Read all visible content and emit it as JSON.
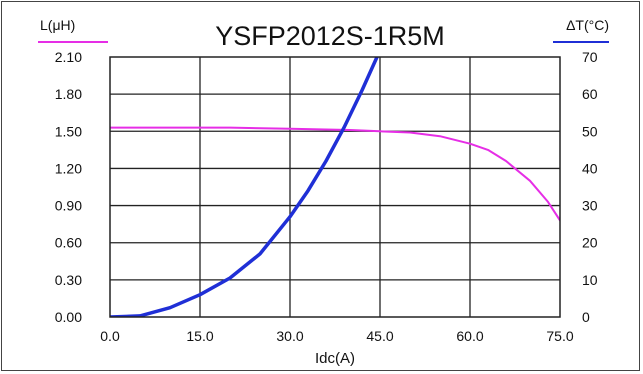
{
  "chart_data": {
    "type": "line",
    "title": "YSFP2012S-1R5M",
    "xlabel": "Idc(A)",
    "ylabel_left": "L(μH)",
    "ylabel_right": "ΔT(°C)",
    "xlim": [
      0,
      75
    ],
    "ylim_left": [
      0,
      2.1
    ],
    "ylim_right": [
      0,
      70
    ],
    "x_ticks": [
      "0.0",
      "15.0",
      "30.0",
      "45.0",
      "60.0",
      "75.0"
    ],
    "y_left_ticks": [
      "0.00",
      "0.30",
      "0.60",
      "0.90",
      "1.20",
      "1.50",
      "1.80",
      "2.10"
    ],
    "y_right_ticks": [
      "0",
      "10",
      "20",
      "30",
      "40",
      "50",
      "60",
      "70"
    ],
    "grid": true,
    "series": [
      {
        "name": "L(μH)",
        "axis": "left",
        "color": "#e62ee6",
        "x": [
          0,
          10,
          20,
          30,
          40,
          45,
          50,
          55,
          60,
          63,
          66,
          70,
          73,
          75
        ],
        "y": [
          1.53,
          1.53,
          1.53,
          1.52,
          1.51,
          1.5,
          1.49,
          1.46,
          1.4,
          1.35,
          1.26,
          1.1,
          0.93,
          0.78
        ]
      },
      {
        "name": "ΔT(°C)",
        "axis": "right",
        "color": "#1f2fd6",
        "x": [
          0,
          5,
          10,
          15,
          20,
          25,
          30,
          33,
          36,
          39,
          42,
          44.5
        ],
        "y": [
          0,
          0.3,
          2.5,
          6,
          10.5,
          17,
          27,
          34,
          42,
          51,
          61,
          70
        ]
      }
    ]
  }
}
